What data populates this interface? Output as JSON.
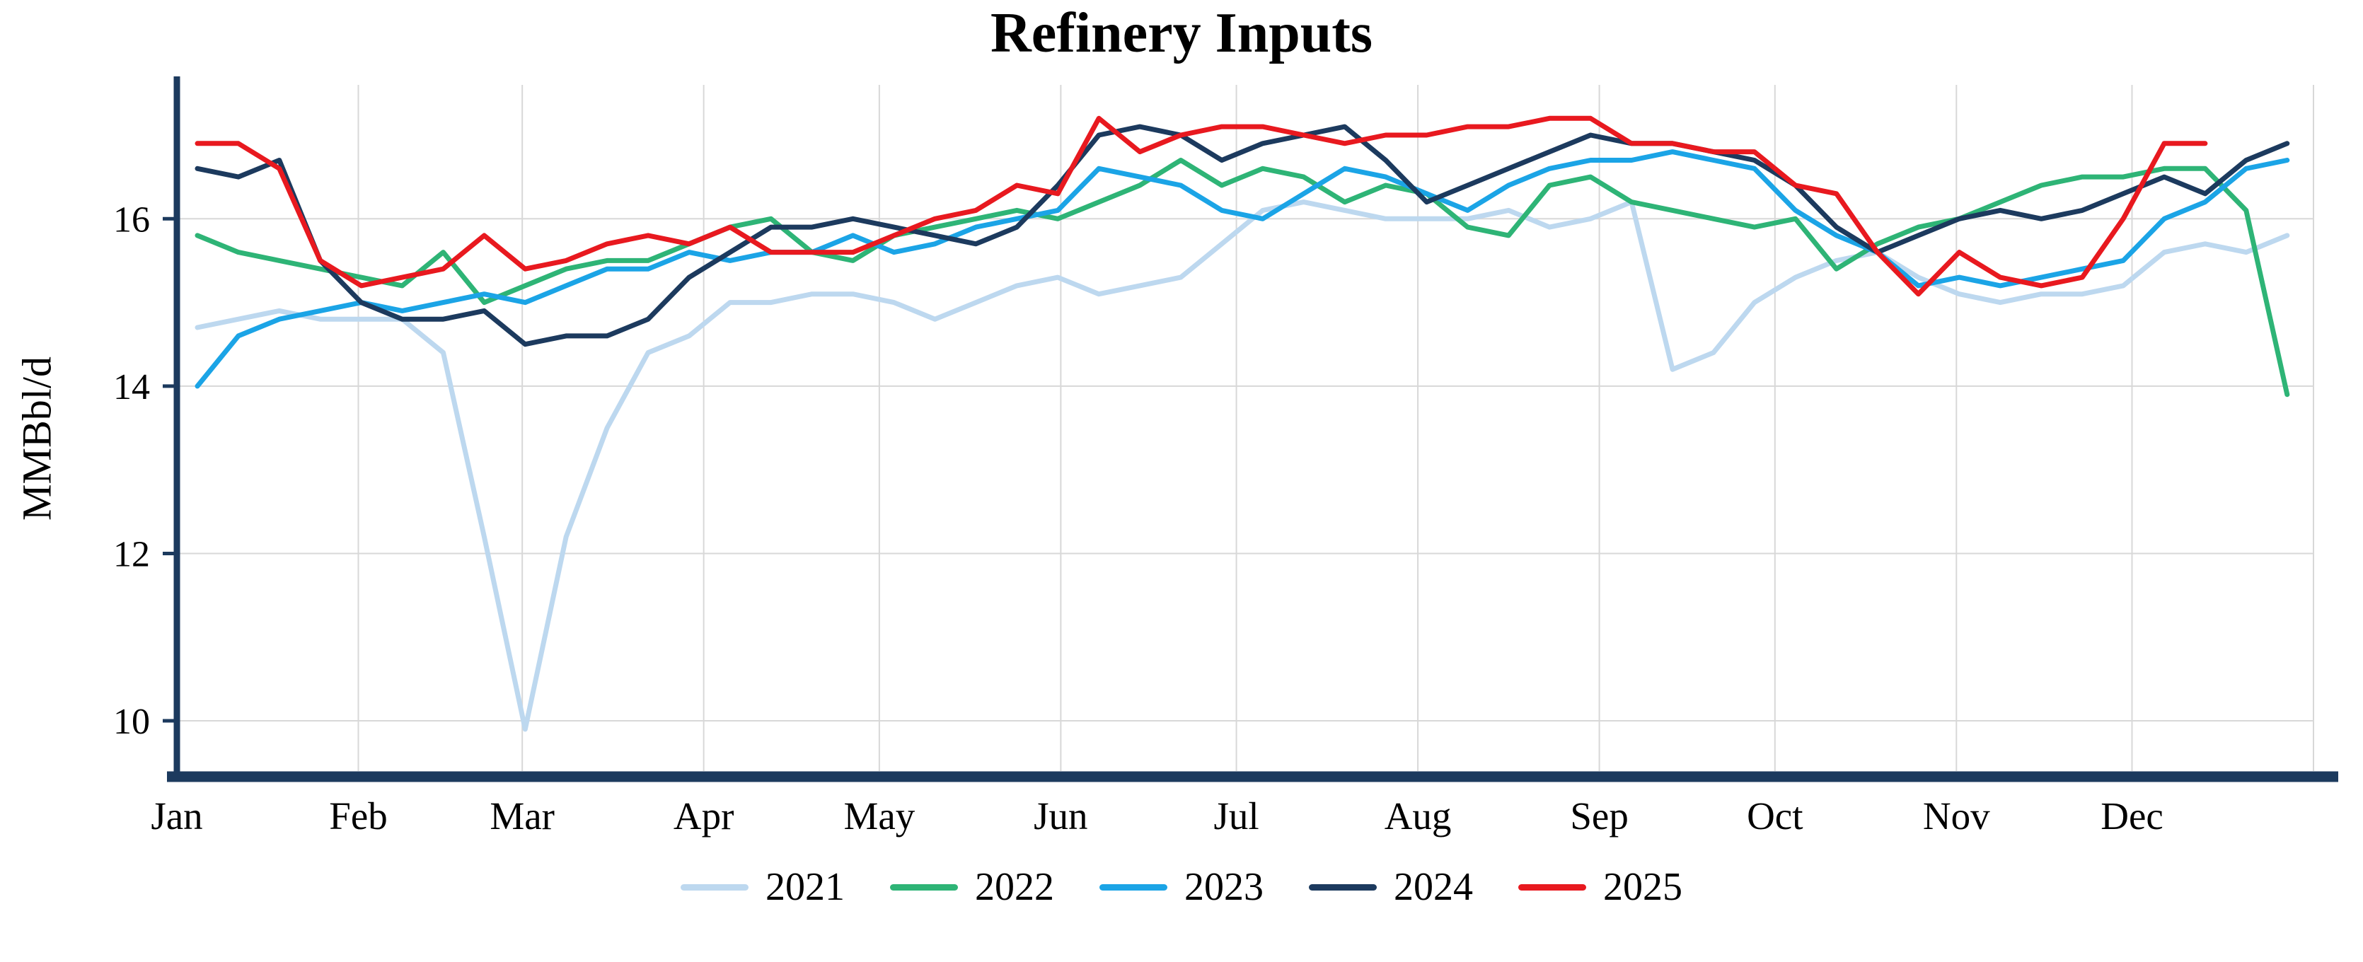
{
  "page": {
    "background": "#ffffff"
  },
  "chart_data": {
    "type": "line",
    "title": "Refinery Inputs",
    "ylabel": "MMBbl/d",
    "xlabel": "",
    "x_unit": "week-of-year",
    "x_tick_labels": [
      "Jan",
      "Feb",
      "Mar",
      "Apr",
      "May",
      "Jun",
      "Jul",
      "Aug",
      "Sep",
      "Oct",
      "Nov",
      "Dec"
    ],
    "y_ticks": [
      10,
      12,
      14,
      16
    ],
    "ylim": [
      9.4,
      17.6
    ],
    "grid": true,
    "legend_position": "bottom",
    "style": {
      "axis_color": "#1c3a5e",
      "grid_color": "#d8d8d8",
      "text_color": "#000000",
      "line_width": 7
    },
    "series": [
      {
        "name": "2021",
        "color": "#bdd8ef",
        "values": [
          14.7,
          14.8,
          14.9,
          14.8,
          14.8,
          14.8,
          14.4,
          12.2,
          9.9,
          12.2,
          13.5,
          14.4,
          14.6,
          15.0,
          15.0,
          15.1,
          15.1,
          15.0,
          14.8,
          15.0,
          15.2,
          15.3,
          15.1,
          15.2,
          15.3,
          15.7,
          16.1,
          16.2,
          16.1,
          16.0,
          16.0,
          16.0,
          16.1,
          15.9,
          16.0,
          16.2,
          14.2,
          14.4,
          15.0,
          15.3,
          15.5,
          15.6,
          15.3,
          15.1,
          15.0,
          15.1,
          15.1,
          15.2,
          15.6,
          15.7,
          15.6,
          15.8
        ]
      },
      {
        "name": "2022",
        "color": "#2eb476",
        "values": [
          15.8,
          15.6,
          15.5,
          15.4,
          15.3,
          15.2,
          15.6,
          15.0,
          15.2,
          15.4,
          15.5,
          15.5,
          15.7,
          15.9,
          16.0,
          15.6,
          15.5,
          15.8,
          15.9,
          16.0,
          16.1,
          16.0,
          16.2,
          16.4,
          16.7,
          16.4,
          16.6,
          16.5,
          16.2,
          16.4,
          16.3,
          15.9,
          15.8,
          16.4,
          16.5,
          16.2,
          16.1,
          16.0,
          15.9,
          16.0,
          15.4,
          15.7,
          15.9,
          16.0,
          16.2,
          16.4,
          16.5,
          16.5,
          16.6,
          16.6,
          16.1,
          13.9
        ]
      },
      {
        "name": "2023",
        "color": "#1ba4e6",
        "values": [
          14.0,
          14.6,
          14.8,
          14.9,
          15.0,
          14.9,
          15.0,
          15.1,
          15.0,
          15.2,
          15.4,
          15.4,
          15.6,
          15.5,
          15.6,
          15.6,
          15.8,
          15.6,
          15.7,
          15.9,
          16.0,
          16.1,
          16.6,
          16.5,
          16.4,
          16.1,
          16.0,
          16.3,
          16.6,
          16.5,
          16.3,
          16.1,
          16.4,
          16.6,
          16.7,
          16.7,
          16.8,
          16.7,
          16.6,
          16.1,
          15.8,
          15.6,
          15.2,
          15.3,
          15.2,
          15.3,
          15.4,
          15.5,
          16.0,
          16.2,
          16.6,
          16.7
        ]
      },
      {
        "name": "2024",
        "color": "#1c3a5e",
        "values": [
          16.6,
          16.5,
          16.7,
          15.5,
          15.0,
          14.8,
          14.8,
          14.9,
          14.5,
          14.6,
          14.6,
          14.8,
          15.3,
          15.6,
          15.9,
          15.9,
          16.0,
          15.9,
          15.8,
          15.7,
          15.9,
          16.4,
          17.0,
          17.1,
          17.0,
          16.7,
          16.9,
          17.0,
          17.1,
          16.7,
          16.2,
          16.4,
          16.6,
          16.8,
          17.0,
          16.9,
          16.9,
          16.8,
          16.7,
          16.4,
          15.9,
          15.6,
          15.8,
          16.0,
          16.1,
          16.0,
          16.1,
          16.3,
          16.5,
          16.3,
          16.7,
          16.9
        ]
      },
      {
        "name": "2025",
        "color": "#e8191f",
        "values": [
          16.9,
          16.9,
          16.6,
          15.5,
          15.2,
          15.3,
          15.4,
          15.8,
          15.4,
          15.5,
          15.7,
          15.8,
          15.7,
          15.9,
          15.6,
          15.6,
          15.6,
          15.8,
          16.0,
          16.1,
          16.4,
          16.3,
          17.2,
          16.8,
          17.0,
          17.1,
          17.1,
          17.0,
          16.9,
          17.0,
          17.0,
          17.1,
          17.1,
          17.2,
          17.2,
          16.9,
          16.9,
          16.8,
          16.8,
          16.4,
          16.3,
          15.6,
          15.1,
          15.6,
          15.3,
          15.2,
          15.3,
          16.0,
          16.9,
          16.9
        ]
      }
    ]
  }
}
